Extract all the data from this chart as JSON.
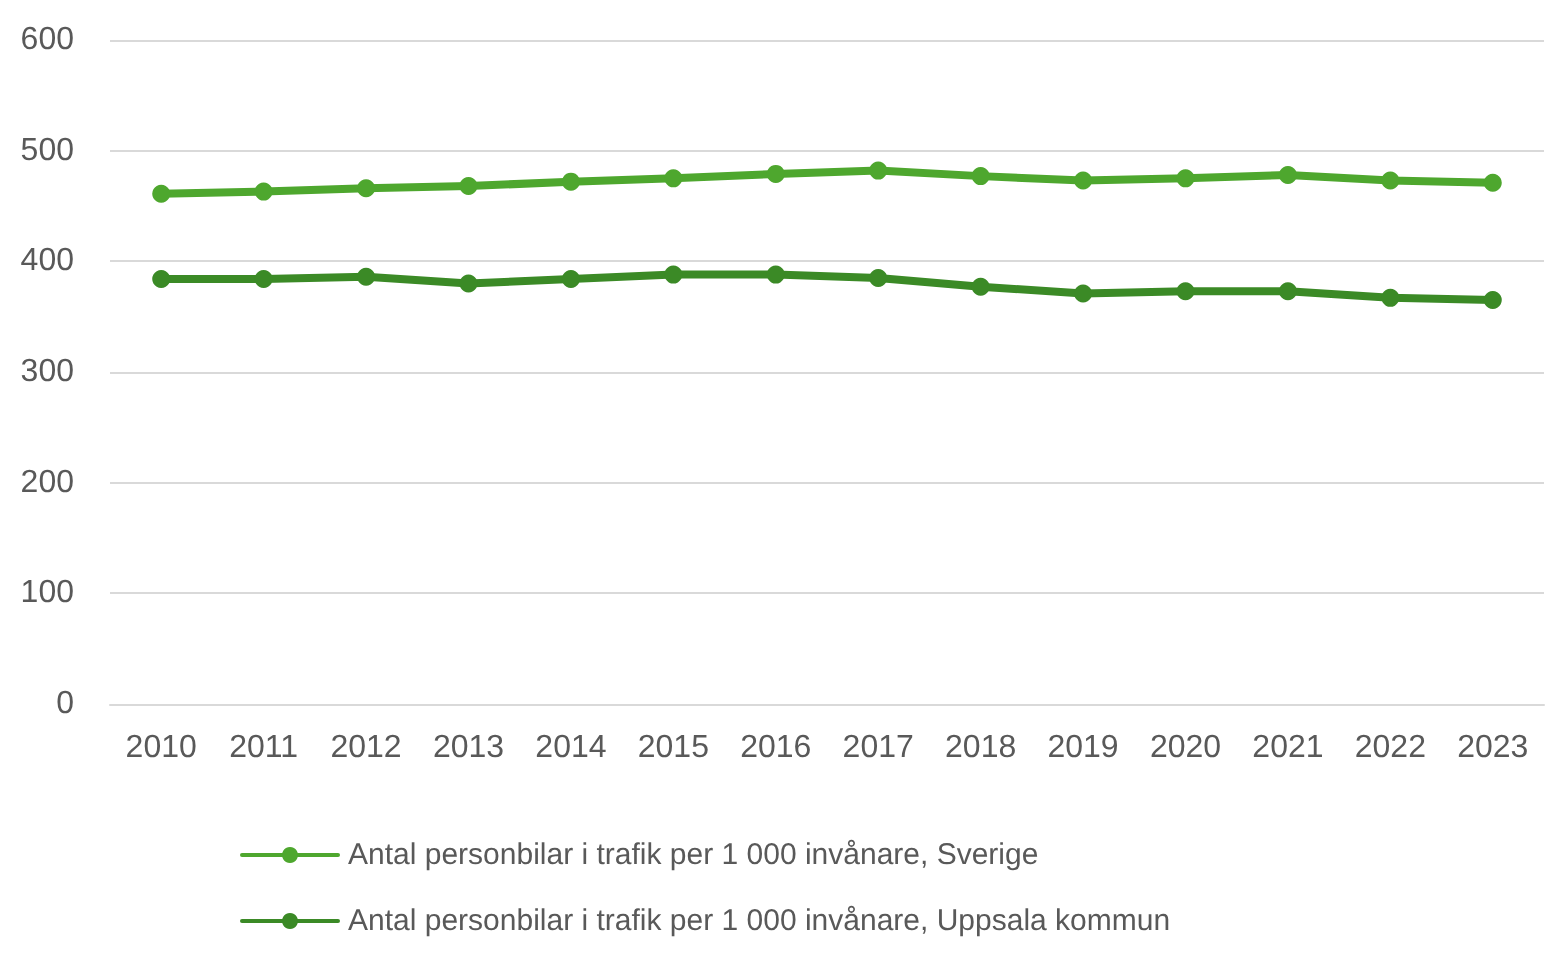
{
  "chart_data": {
    "type": "line",
    "categories": [
      "2010",
      "2011",
      "2012",
      "2013",
      "2014",
      "2015",
      "2016",
      "2017",
      "2018",
      "2019",
      "2020",
      "2021",
      "2022",
      "2023"
    ],
    "series": [
      {
        "name": "Antal personbilar i trafik per 1 000 invånare, Sverige",
        "color": "#4ea72e",
        "values": [
          461,
          463,
          466,
          468,
          472,
          475,
          479,
          482,
          477,
          473,
          475,
          478,
          473,
          471
        ]
      },
      {
        "name": "Antal personbilar i trafik per 1 000 invånare, Uppsala kommun",
        "color": "#3b8a26",
        "values": [
          384,
          384,
          386,
          380,
          384,
          388,
          388,
          385,
          377,
          371,
          373,
          373,
          367,
          365
        ]
      }
    ],
    "ylim": [
      0,
      600
    ],
    "yticks": [
      0,
      100,
      200,
      300,
      400,
      500,
      600
    ],
    "grid": "y",
    "legend": "bottom",
    "marker": "circle",
    "line_style": "solid"
  }
}
